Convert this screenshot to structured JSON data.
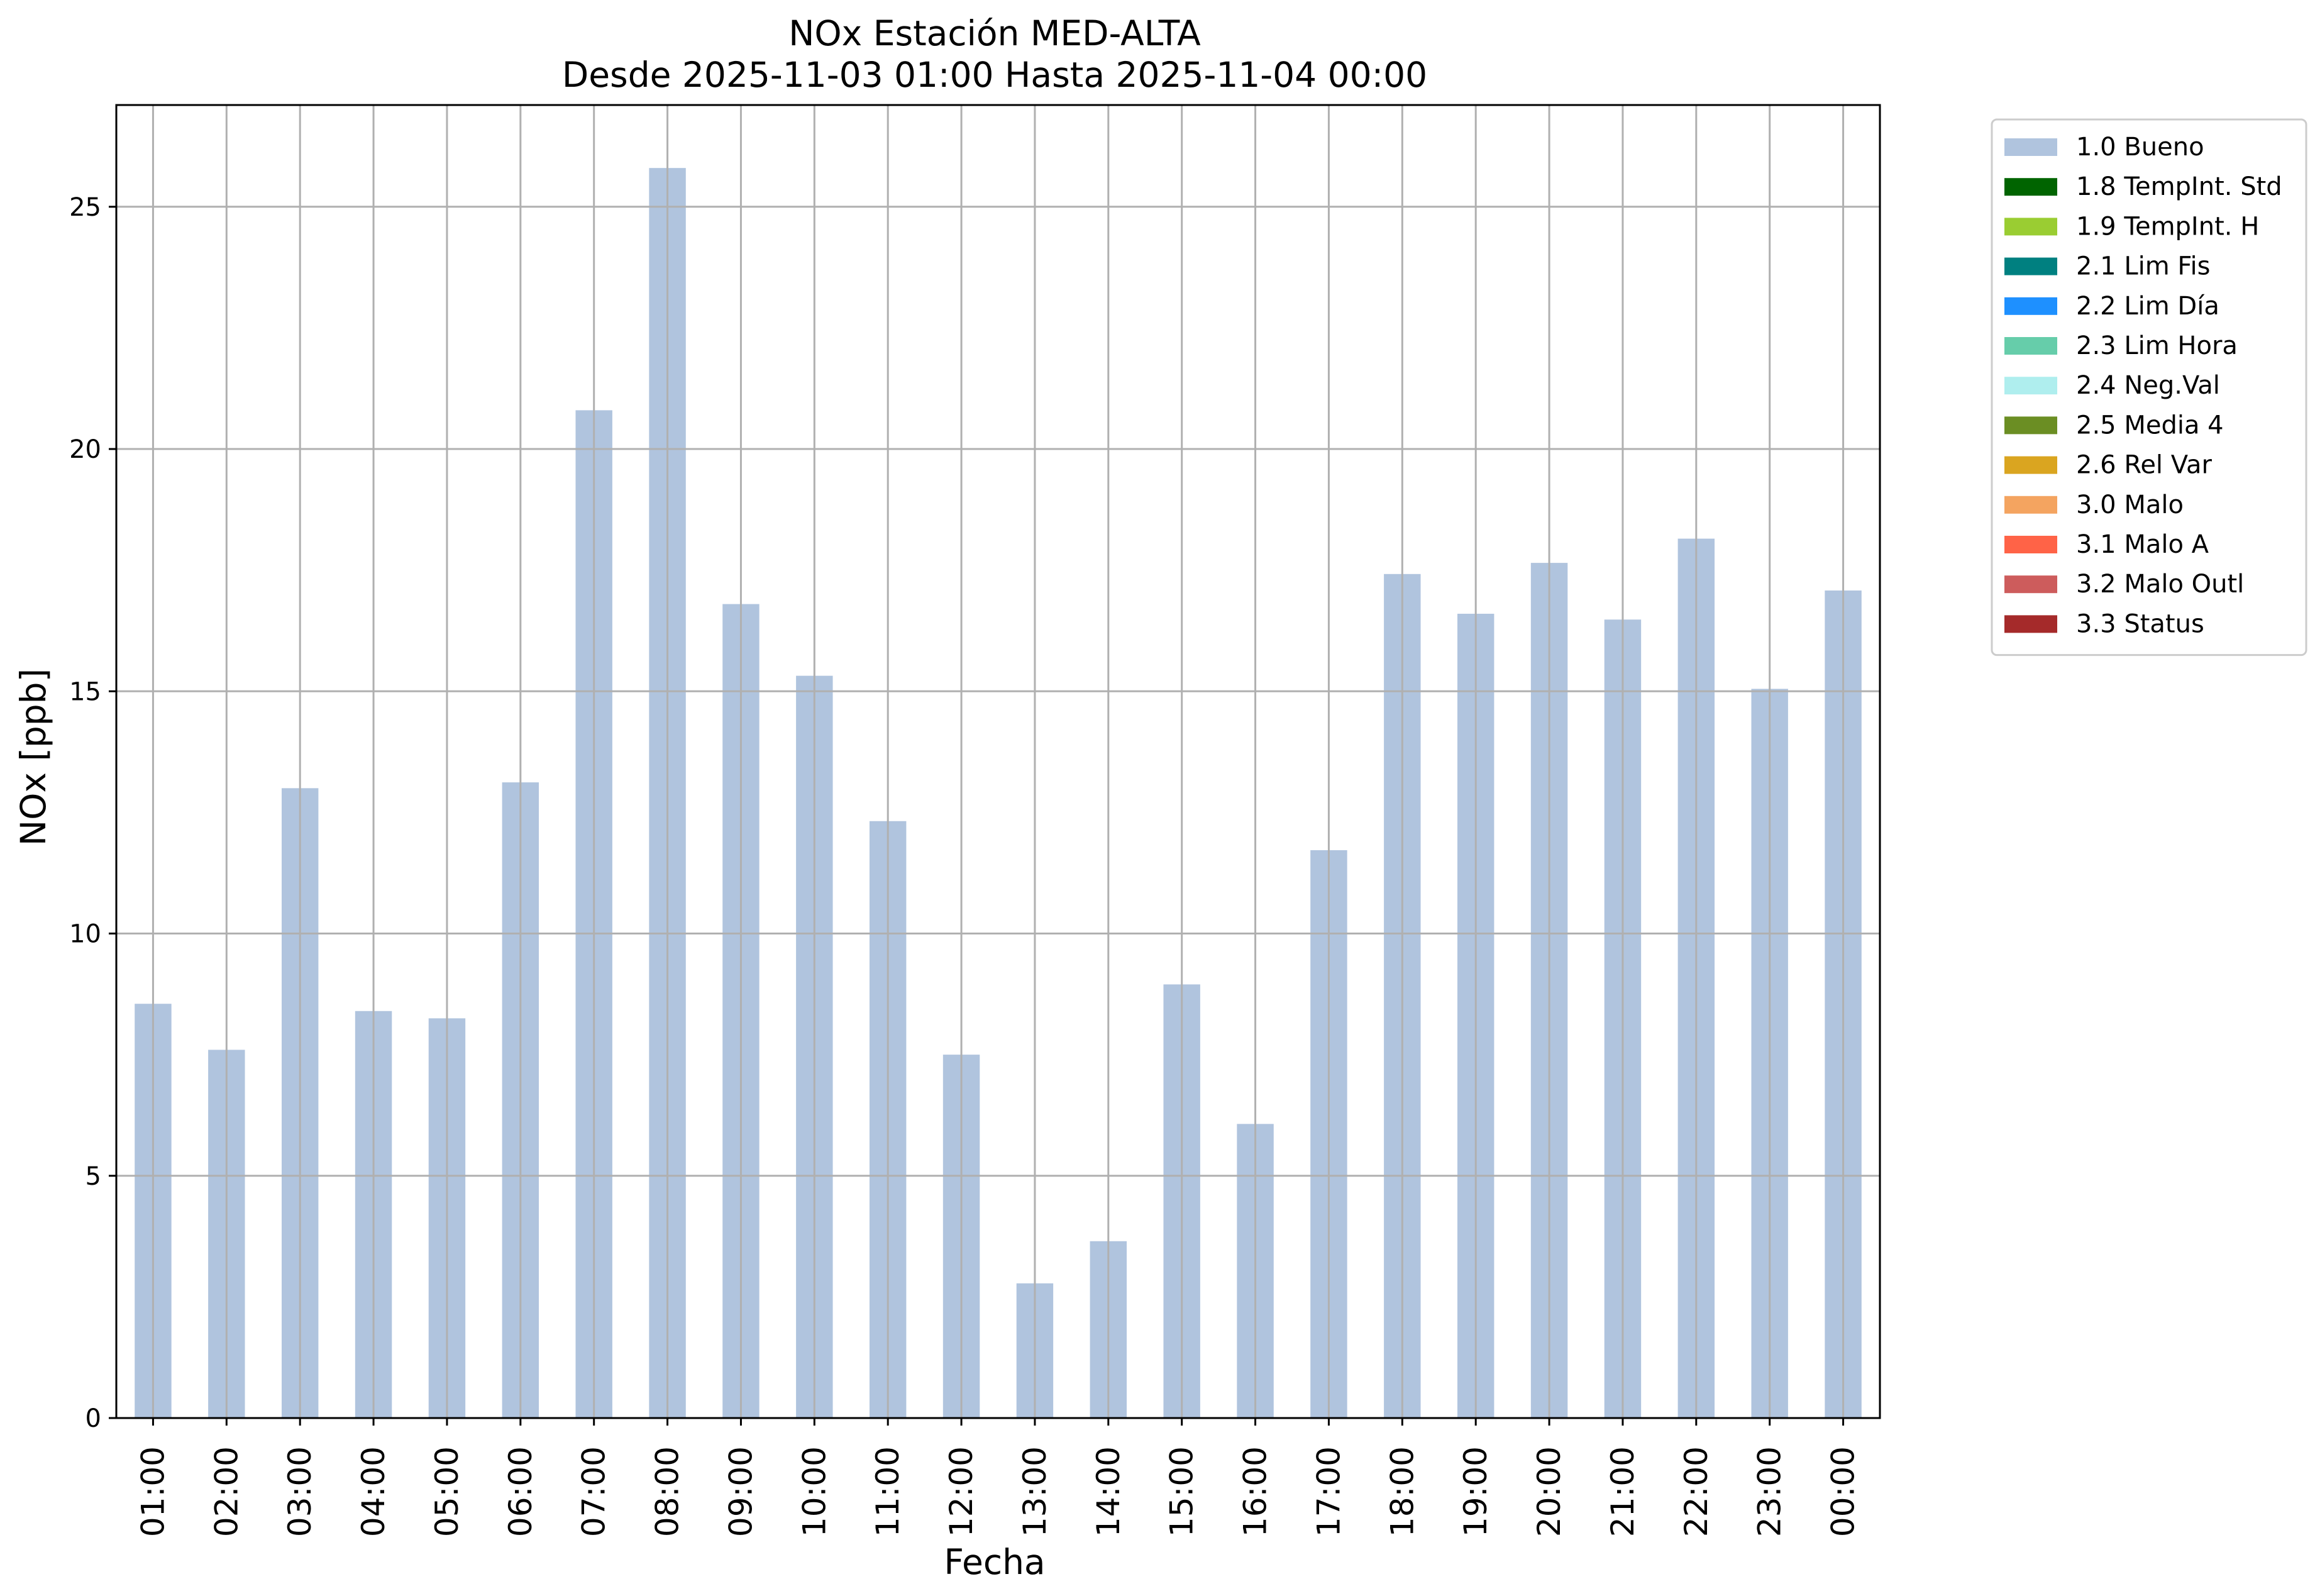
{
  "chart_data": {
    "type": "bar",
    "title": "NOx Estación MED-ALTA",
    "subtitle": "Desde 2025-11-03 01:00 Hasta 2025-11-04 00:00",
    "xlabel": "Fecha",
    "ylabel": "NOx [ppb]",
    "ylim": [
      0,
      27.1
    ],
    "yticks": [
      0,
      5,
      10,
      15,
      20,
      25
    ],
    "grid": true,
    "legend_position": "outside-top-right",
    "categories": [
      "01:00",
      "02:00",
      "03:00",
      "04:00",
      "05:00",
      "06:00",
      "07:00",
      "08:00",
      "09:00",
      "10:00",
      "11:00",
      "12:00",
      "13:00",
      "14:00",
      "15:00",
      "16:00",
      "17:00",
      "18:00",
      "19:00",
      "20:00",
      "21:00",
      "22:00",
      "23:00",
      "00:00"
    ],
    "series": [
      {
        "name": "1.0 Bueno",
        "color": "#b0c4de",
        "values": [
          8.55,
          7.6,
          13.0,
          8.4,
          8.25,
          13.12,
          20.8,
          25.8,
          16.8,
          15.32,
          12.32,
          7.5,
          2.78,
          3.65,
          8.95,
          6.07,
          11.72,
          17.42,
          16.6,
          17.65,
          16.48,
          18.15,
          15.05,
          17.08
        ]
      }
    ],
    "legend": [
      {
        "label": "1.0 Bueno",
        "color": "#b0c4de"
      },
      {
        "label": "1.8 TempInt. Std",
        "color": "#006400"
      },
      {
        "label": "1.9 TempInt. H",
        "color": "#9acd32"
      },
      {
        "label": "2.1 Lim Fis",
        "color": "#008080"
      },
      {
        "label": "2.2 Lim Día",
        "color": "#1e90ff"
      },
      {
        "label": "2.3 Lim Hora",
        "color": "#66cdaa"
      },
      {
        "label": "2.4 Neg.Val",
        "color": "#afeeee"
      },
      {
        "label": "2.5 Media 4",
        "color": "#6b8e23"
      },
      {
        "label": "2.6 Rel Var",
        "color": "#daa520"
      },
      {
        "label": "3.0 Malo",
        "color": "#f4a460"
      },
      {
        "label": "3.1 Malo A",
        "color": "#ff6347"
      },
      {
        "label": "3.2 Malo Outl",
        "color": "#cd5c5c"
      },
      {
        "label": "3.3 Status",
        "color": "#a52a2a"
      }
    ]
  }
}
